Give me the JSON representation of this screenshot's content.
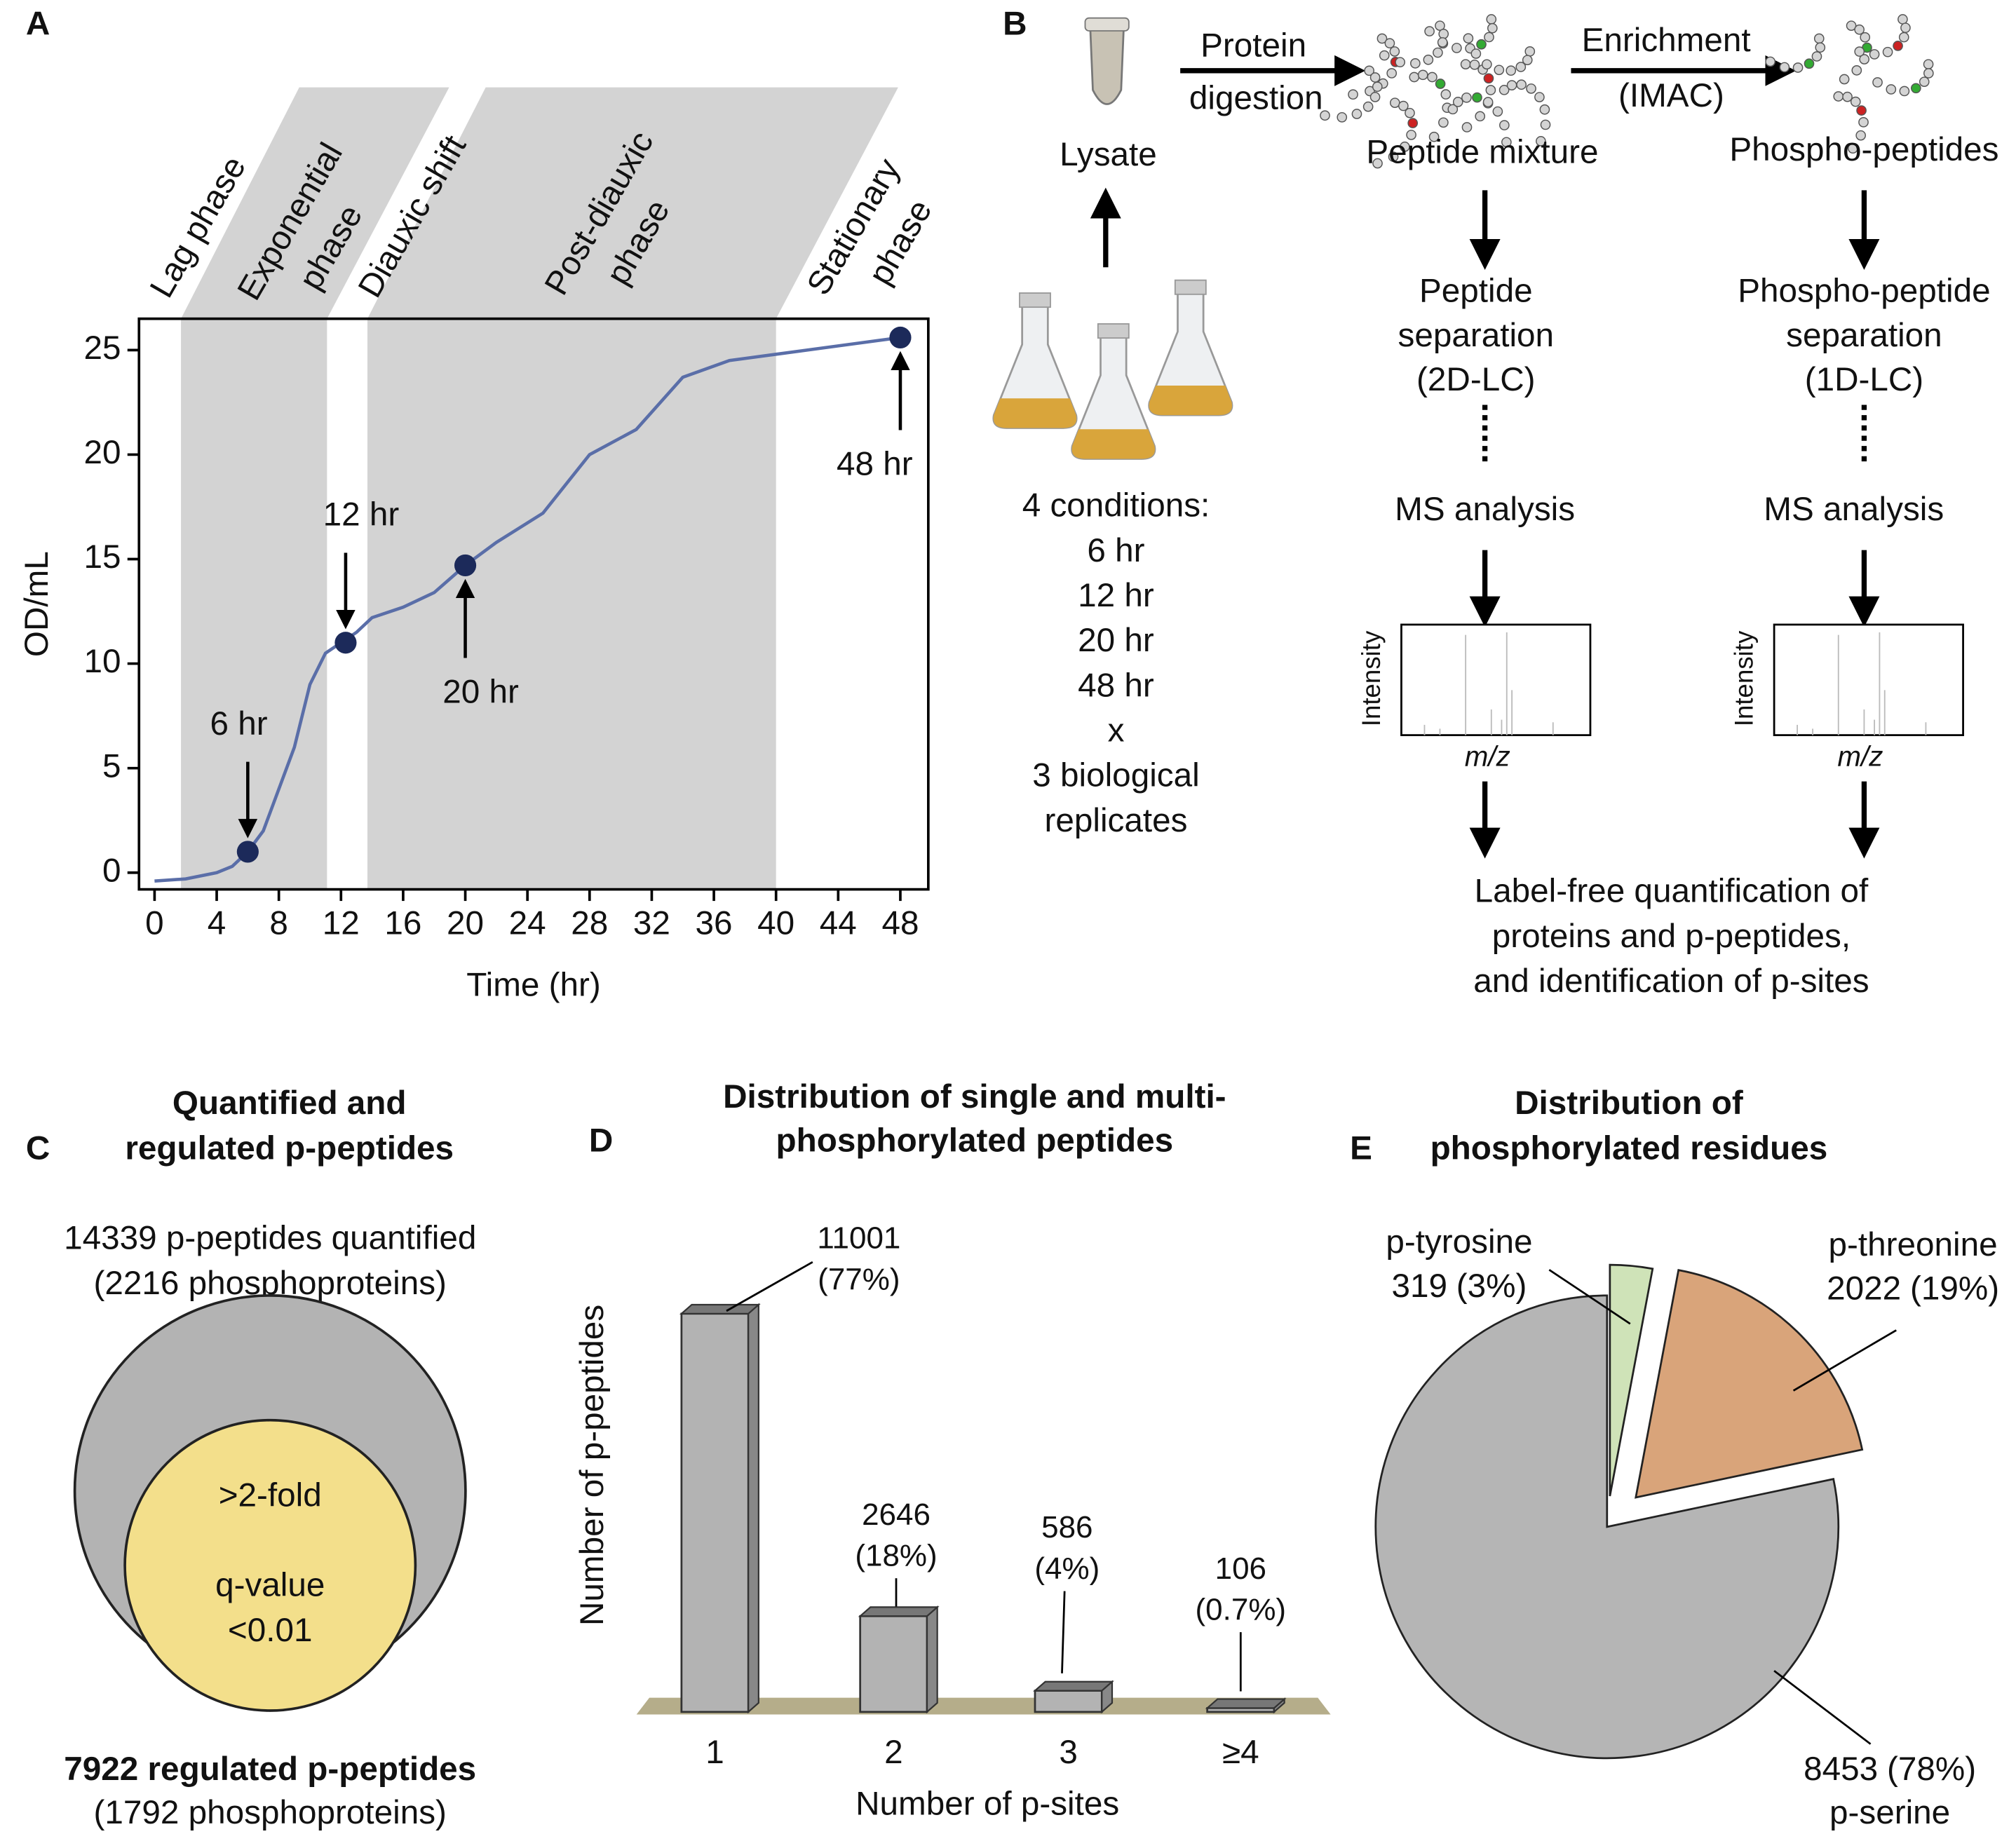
{
  "chart_data": [
    {
      "type": "line",
      "panel": "A",
      "xlabel": "Time (hr)",
      "ylabel": "OD/mL",
      "x": [
        0,
        2,
        4,
        5,
        6,
        7,
        8,
        9,
        10,
        11,
        12,
        13,
        14,
        16,
        18,
        20,
        22,
        25,
        28,
        31,
        34,
        37,
        40,
        44,
        48
      ],
      "values": [
        -0.4,
        -0.3,
        0,
        0.3,
        1,
        2,
        4,
        6,
        9,
        10.5,
        11,
        11.5,
        12.2,
        12.7,
        13.4,
        14.7,
        15.8,
        17.2,
        20,
        21.2,
        23.7,
        24.5,
        24.8,
        25.2,
        25.6
      ],
      "color": "#5a6ea8",
      "marker_color": "#1c2a5a",
      "xlim": [
        -1,
        49.8
      ],
      "ylim": [
        -0.8,
        26.5
      ],
      "xticks": [
        0,
        4,
        8,
        12,
        16,
        20,
        24,
        28,
        32,
        36,
        40,
        44,
        48
      ],
      "yticks": [
        0,
        5,
        10,
        15,
        20,
        25
      ],
      "phases": [
        {
          "start": 1.7,
          "end": 11.1
        },
        {
          "start": 13.7,
          "end": 40
        }
      ],
      "phase_labels": [
        [
          "Lag phase"
        ],
        [
          "Exponential",
          "phase"
        ],
        [
          "Diauxic shift"
        ],
        [
          "Post-diauxic",
          "phase"
        ],
        [
          "Stationary",
          "phase"
        ]
      ],
      "timepoints": {
        "x": [
          6,
          12.3,
          20,
          48
        ],
        "values": [
          1,
          11,
          14.7,
          25.6
        ],
        "labels": [
          "6 hr",
          "12 hr",
          "20 hr",
          "48 hr"
        ]
      }
    },
    {
      "type": "bar",
      "panel": "D",
      "title": [
        "Distribution of single and multi-",
        "phosphorylated peptides"
      ],
      "categories": [
        "1",
        "2",
        "3",
        "≥4"
      ],
      "values": [
        11001,
        2646,
        586,
        106
      ],
      "shares": [
        77,
        18,
        4,
        0.7
      ],
      "share_labels": [
        "(77%)",
        "(18%)",
        "(4%)",
        "(0.7%)"
      ],
      "xlabel": "Number of p-sites",
      "ylabel": "Number of p-peptides",
      "ylim": [
        0,
        12000
      ],
      "color": "#b3b3b3",
      "floor_color": "#b5ad8a"
    },
    {
      "type": "pie",
      "panel": "E",
      "title": [
        "Distribution of",
        "phosphorylated residues"
      ],
      "labels": [
        "p-tyrosine",
        "p-threonine",
        "p-serine"
      ],
      "values": [
        319,
        2022,
        8453
      ],
      "percentages": [
        3,
        19,
        78
      ],
      "percentage_labels": [
        "(3%)",
        "(19%)",
        "(78%)"
      ],
      "colors": [
        "#cfe3b8",
        "#d9a47a",
        "#b5b5b5"
      ]
    }
  ],
  "venn": {
    "panel": "C",
    "title": [
      "Quantified and",
      "regulated p-peptides"
    ],
    "outer": [
      "14339 p-peptides quantified",
      "(2216 phosphoproteins)"
    ],
    "inner": [
      ">2-fold",
      "q-value",
      "<0.01"
    ],
    "bottom": [
      "7922 regulated p-peptides",
      "(1792 phosphoproteins)"
    ]
  },
  "workflow": {
    "panel": "B",
    "protein_digestion": [
      "Protein",
      "digestion"
    ],
    "enrichment": [
      "Enrichment",
      "(IMAC)"
    ],
    "lysate": "Lysate",
    "peptide_mixture": "Peptide mixture",
    "phospho_peptides": "Phospho-peptides",
    "peptide_separation": [
      "Peptide",
      "separation",
      "(2D-LC)"
    ],
    "phospho_separation": [
      "Phospho-peptide",
      "separation",
      "(1D-LC)"
    ],
    "ms_analysis": [
      "MS analysis",
      "MS analysis"
    ],
    "spectrum_y": "Intensity",
    "spectrum_x": "m/z",
    "conditions": [
      "4 conditions:",
      "6 hr",
      "12 hr",
      "20 hr",
      "48 hr",
      "x",
      "3 biological",
      "replicates"
    ],
    "output": [
      "Label-free quantification of",
      "proteins and p-peptides,",
      "and identification of p-sites"
    ]
  }
}
